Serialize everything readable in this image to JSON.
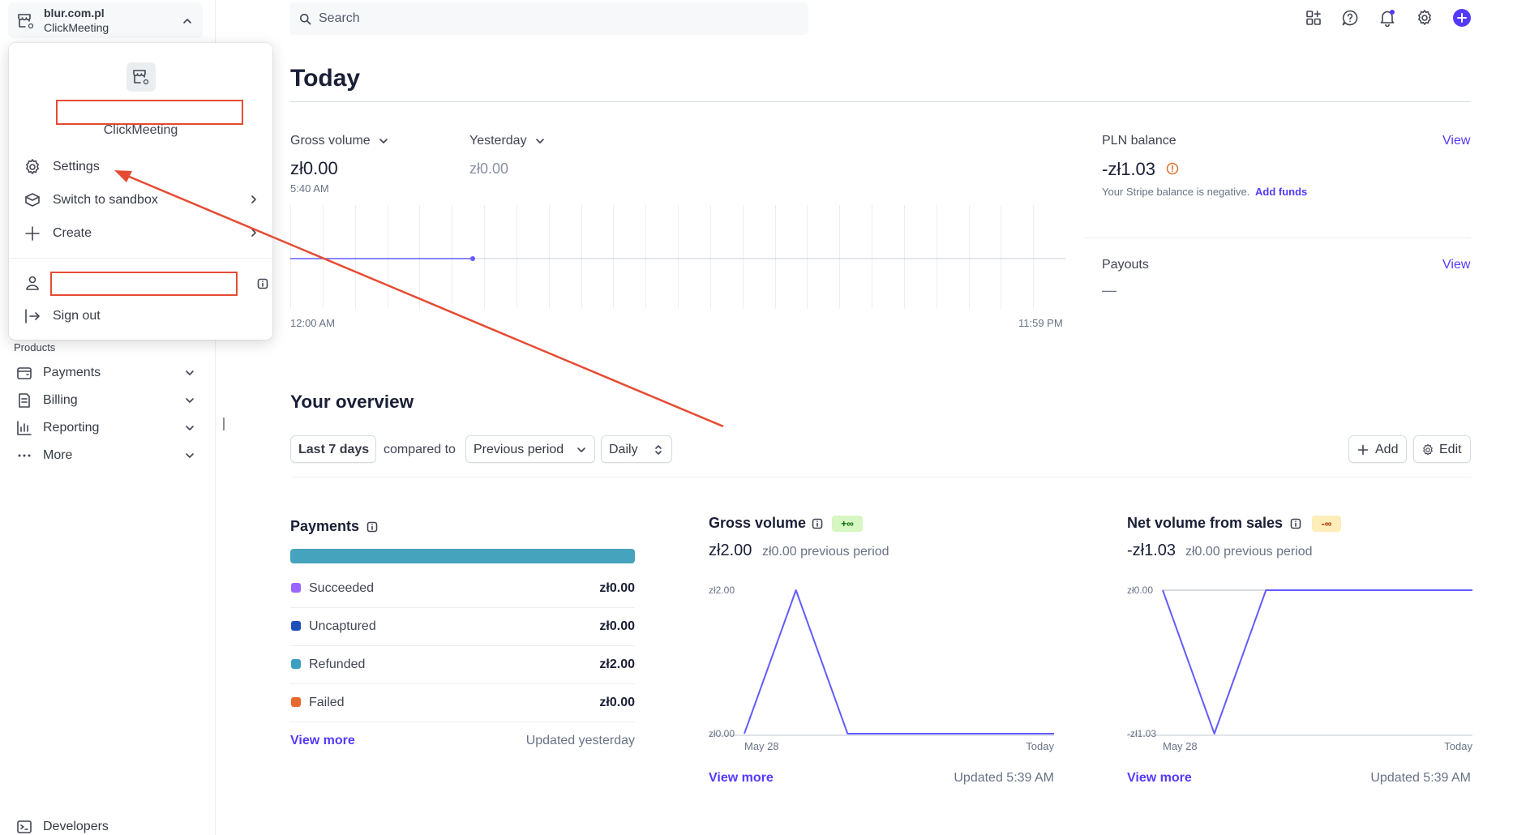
{
  "account": {
    "name": "blur.com.pl",
    "subtitle": "ClickMeeting"
  },
  "popover": {
    "account_subtitle": "ClickMeeting",
    "items": [
      {
        "label": "Settings",
        "icon": "gear-icon"
      },
      {
        "label": "Switch to sandbox",
        "icon": "cube-icon"
      },
      {
        "label": "Create",
        "icon": "plus-icon"
      }
    ],
    "sign_out": "Sign out"
  },
  "sidebar": {
    "section_label": "Products",
    "items": [
      {
        "label": "Payments",
        "icon": "wallet-icon"
      },
      {
        "label": "Billing",
        "icon": "billing-icon"
      },
      {
        "label": "Reporting",
        "icon": "bar-chart-icon"
      },
      {
        "label": "More",
        "icon": "more-icon"
      }
    ],
    "developers": "Developers"
  },
  "search": {
    "placeholder": "Search"
  },
  "today": {
    "title": "Today",
    "gross_volume_label": "Gross volume",
    "gross_volume_value": "zł0.00",
    "gross_volume_time": "5:40 AM",
    "yesterday_label": "Yesterday",
    "yesterday_value": "zł0.00",
    "axis_start": "12:00 AM",
    "axis_end": "11:59 PM",
    "balance_label": "PLN balance",
    "balance_view": "View",
    "balance_value": "-zł1.03",
    "balance_note": "Your Stripe balance is negative.",
    "add_funds": "Add funds",
    "payouts_label": "Payouts",
    "payouts_view": "View",
    "payouts_value": "—"
  },
  "overview": {
    "title": "Your overview",
    "range_button": "Last 7 days",
    "compared_to": "compared to",
    "compare_select": "Previous period",
    "interval_select": "Daily",
    "add_button": "Add",
    "edit_button": "Edit"
  },
  "payments_card": {
    "title": "Payments",
    "rows": [
      {
        "label": "Succeeded",
        "value": "zł0.00",
        "color": "#9966ff"
      },
      {
        "label": "Uncaptured",
        "value": "zł0.00",
        "color": "#1f4fb8"
      },
      {
        "label": "Refunded",
        "value": "zł2.00",
        "color": "#3d9fbf"
      },
      {
        "label": "Failed",
        "value": "zł0.00",
        "color": "#e6692e"
      }
    ],
    "bar_color": "#46a3bd",
    "view_more": "View more",
    "updated": "Updated yesterday"
  },
  "gross_card": {
    "title": "Gross volume",
    "badge": "+∞",
    "value": "zł2.00",
    "previous": "zł0.00 previous period",
    "view_more": "View more",
    "updated": "Updated 5:39 AM"
  },
  "net_card": {
    "title": "Net volume from sales",
    "badge": "-∞",
    "value": "-zł1.03",
    "previous": "zł0.00 previous period",
    "view_more": "View more",
    "updated": "Updated 5:39 AM"
  },
  "chart_data": [
    {
      "type": "line",
      "title": "Gross volume",
      "x": [
        "May 28",
        "",
        "",
        "",
        "",
        "",
        "Today"
      ],
      "x_tick_labels": [
        "May 28",
        "Today"
      ],
      "series": [
        {
          "values": [
            0,
            2.0,
            0,
            0,
            0,
            0,
            0
          ]
        }
      ],
      "y_tick_labels": [
        "zł2.00",
        "zł0.00"
      ],
      "ylim": [
        0,
        2.0
      ],
      "color": "#635bff"
    },
    {
      "type": "line",
      "title": "Net volume from sales",
      "x": [
        "May 28",
        "",
        "",
        "",
        "",
        "",
        "Today"
      ],
      "x_tick_labels": [
        "May 28",
        "Today"
      ],
      "series": [
        {
          "values": [
            0,
            -1.03,
            0,
            0,
            0,
            0,
            0
          ]
        }
      ],
      "y_tick_labels": [
        "zł0.00",
        "-zł1.03"
      ],
      "ylim": [
        -1.03,
        0
      ],
      "color": "#635bff"
    }
  ]
}
